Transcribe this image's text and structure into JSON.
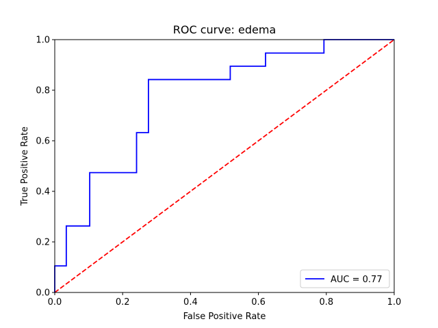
{
  "chart_data": {
    "type": "line",
    "title": "ROC curve: edema",
    "xlabel": "False Positive Rate",
    "ylabel": "True Positive Rate",
    "xlim": [
      0.0,
      1.0
    ],
    "ylim": [
      0.0,
      1.0
    ],
    "xticks": [
      "0.0",
      "0.2",
      "0.4",
      "0.6",
      "0.8",
      "1.0"
    ],
    "yticks": [
      "0.0",
      "0.2",
      "0.4",
      "0.6",
      "0.8",
      "1.0"
    ],
    "grid": false,
    "legend_position": "lower-right",
    "series": [
      {
        "name": "AUC = 0.77",
        "color": "#0000ff",
        "line_style": "solid",
        "step": true,
        "x": [
          0.0,
          0.0,
          0.034,
          0.034,
          0.103,
          0.103,
          0.241,
          0.241,
          0.276,
          0.276,
          0.517,
          0.517,
          0.621,
          0.621,
          0.793,
          0.793,
          1.0
        ],
        "y": [
          0.0,
          0.105,
          0.105,
          0.263,
          0.263,
          0.474,
          0.474,
          0.632,
          0.632,
          0.842,
          0.842,
          0.895,
          0.895,
          0.947,
          0.947,
          1.0,
          1.0
        ]
      },
      {
        "color": "#ff0000",
        "line_style": "dashed",
        "x": [
          0.0,
          1.0
        ],
        "y": [
          0.0,
          1.0
        ]
      }
    ]
  }
}
